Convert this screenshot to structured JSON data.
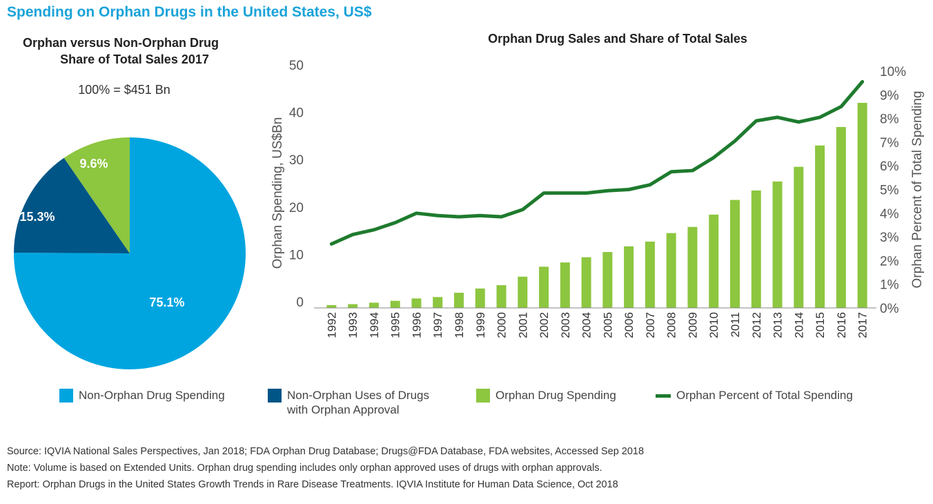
{
  "main_title": "Spending on Orphan Drugs in the United States, US$",
  "pie": {
    "title_line1": "Orphan versus Non-Orphan Drug",
    "title_line2": "Share of Total Sales 2017",
    "total_label": "100% = $451 Bn"
  },
  "combo": {
    "title": "Orphan Drug Sales and Share of Total Sales"
  },
  "legend": {
    "item1": "Non-Orphan Drug Spending",
    "item2_line1": "Non-Orphan Uses of Drugs",
    "item2_line2": "with Orphan Approval",
    "item3": "Orphan Drug Spending",
    "item4": "Orphan Percent of Total Spending"
  },
  "footnotes": {
    "source": "Source: IQVIA National Sales Perspectives, Jan 2018; FDA Orphan Drug Database;  Drugs@FDA Database, FDA websites, Accessed Sep 2018",
    "note": "Note: Volume is based on Extended Units. Orphan drug spending includes only orphan approved uses of drugs with orphan approvals.",
    "report": "Report: Orphan Drugs in the United States Growth Trends in Rare Disease Treatments. IQVIA Institute for Human Data Science, Oct 2018"
  },
  "colors": {
    "non_orphan": "#00a5e0",
    "non_orphan_uses": "#005587",
    "orphan_bar": "#8dc63f",
    "orphan_line": "#1e7b2e",
    "title_blue": "#1aa3d9",
    "axis_text": "#555555"
  },
  "chart_data": [
    {
      "type": "pie",
      "title": "Orphan versus Non-Orphan Drug Share of Total Sales 2017",
      "subtitle": "100% = $451 Bn",
      "slices": [
        {
          "name": "Non-Orphan Drug Spending",
          "value": 75.1,
          "label": "75.1%"
        },
        {
          "name": "Non-Orphan Uses of Drugs with Orphan Approval",
          "value": 15.3,
          "label": "15.3%"
        },
        {
          "name": "Orphan Drug Spending",
          "value": 9.6,
          "label": "9.6%"
        }
      ]
    },
    {
      "type": "bar",
      "title": "Orphan Drug Sales and Share of Total Sales",
      "categories": [
        "1992",
        "1993",
        "1994",
        "1995",
        "1996",
        "1997",
        "1998",
        "1999",
        "2000",
        "2001",
        "2002",
        "2003",
        "2004",
        "2005",
        "2006",
        "2007",
        "2008",
        "2009",
        "2010",
        "2011",
        "2012",
        "2013",
        "2014",
        "2015",
        "2016",
        "2017"
      ],
      "ylabel": "Orphan Spending, US$Bn",
      "y2label": "Orphan Percent of Total Spending",
      "ylim": [
        0,
        50
      ],
      "yticks": [
        0,
        10,
        20,
        30,
        40,
        50
      ],
      "y2lim": [
        0,
        10
      ],
      "y2ticks": [
        "0%",
        "1%",
        "2%",
        "3%",
        "4%",
        "5%",
        "6%",
        "7%",
        "8%",
        "9%",
        "10%"
      ],
      "series": [
        {
          "name": "Orphan Drug Spending",
          "type": "bar",
          "values": [
            0.6,
            0.8,
            1.1,
            1.5,
            2.0,
            2.3,
            3.2,
            4.1,
            4.8,
            6.6,
            8.7,
            9.6,
            10.7,
            11.8,
            13.0,
            14.0,
            15.8,
            17.1,
            19.7,
            22.8,
            24.8,
            26.7,
            29.8,
            34.3,
            38.2,
            43.3
          ]
        },
        {
          "name": "Orphan Percent of Total Spending",
          "type": "line",
          "axis": "y2",
          "values": [
            2.7,
            3.1,
            3.3,
            3.6,
            4.0,
            3.9,
            3.85,
            3.9,
            3.85,
            4.15,
            4.85,
            4.85,
            4.85,
            4.95,
            5.0,
            5.2,
            5.75,
            5.8,
            6.35,
            7.05,
            7.9,
            8.05,
            7.85,
            8.05,
            8.5,
            9.55
          ]
        }
      ]
    }
  ]
}
